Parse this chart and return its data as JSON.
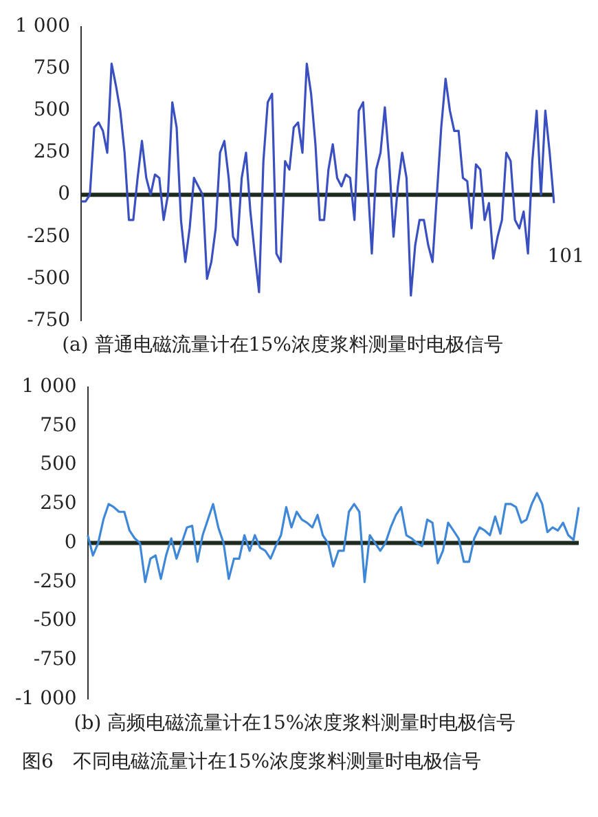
{
  "chart_data": [
    {
      "type": "line",
      "title": "(a) 普通电磁流量计在15%浓度浆料测量时电极信号",
      "categories": [
        null,
        null,
        null,
        null,
        null,
        null,
        null,
        null,
        null,
        null,
        null,
        null,
        null,
        null,
        null,
        null,
        null,
        null,
        null,
        null,
        null,
        null,
        null,
        null,
        null,
        null,
        null,
        null,
        null,
        null,
        null,
        null,
        null,
        null,
        null,
        null,
        null,
        null,
        null,
        null,
        null,
        null,
        null,
        null,
        null,
        null,
        null,
        null,
        null,
        null,
        null,
        null,
        null,
        null,
        null,
        null,
        null,
        null,
        null,
        null,
        null,
        null,
        null,
        null,
        null,
        null,
        null,
        null,
        null,
        null,
        null,
        null,
        null,
        null,
        null,
        null,
        null,
        null,
        null,
        null,
        null,
        null,
        null,
        null,
        null,
        null,
        null,
        null,
        null,
        null,
        null,
        null,
        null,
        null,
        null,
        null,
        null,
        null,
        null,
        null,
        null,
        null,
        null,
        null,
        null,
        null,
        null,
        null,
        null,
        null
      ],
      "series": [
        {
          "color": "#3a4fc0",
          "values": [
            -40,
            -40,
            0,
            400,
            430,
            380,
            250,
            780,
            650,
            500,
            250,
            -150,
            -150,
            100,
            320,
            100,
            0,
            120,
            100,
            -150,
            0,
            550,
            400,
            -150,
            -400,
            -200,
            100,
            50,
            0,
            -500,
            -400,
            -200,
            250,
            320,
            100,
            -250,
            -300,
            100,
            250,
            -100,
            -350,
            -580,
            200,
            550,
            600,
            -350,
            -400,
            200,
            150,
            400,
            430,
            250,
            780,
            600,
            300,
            -150,
            -150,
            150,
            300,
            100,
            50,
            120,
            100,
            -150,
            500,
            550,
            100,
            -350,
            150,
            250,
            520,
            200,
            -250,
            50,
            250,
            100,
            -600,
            -300,
            -150,
            -150,
            -300,
            -400,
            0,
            400,
            690,
            500,
            380,
            380,
            100,
            80,
            -200,
            180,
            150,
            -150,
            -50,
            -380,
            -250,
            -150,
            250,
            200,
            -150,
            -200,
            -100,
            -350,
            200,
            500,
            0,
            500,
            250,
            -50
          ]
        }
      ],
      "ylim": [
        -750,
        1000
      ],
      "yticks": [
        -750,
        -500,
        -250,
        0,
        250,
        500,
        750,
        1000
      ],
      "tick_labels": "y",
      "grid": false,
      "legend": false,
      "marker": "none",
      "line_style": "solid",
      "ref_lines": [
        {
          "axis": "y",
          "value": 0,
          "color": "#1e2a1e"
        }
      ],
      "annotations": [
        "101"
      ]
    },
    {
      "type": "line",
      "title": "(b) 高频电磁流量计在15%浓度浆料测量时电极信号",
      "categories": [
        null,
        null,
        null,
        null,
        null,
        null,
        null,
        null,
        null,
        null,
        null,
        null,
        null,
        null,
        null,
        null,
        null,
        null,
        null,
        null,
        null,
        null,
        null,
        null,
        null,
        null,
        null,
        null,
        null,
        null,
        null,
        null,
        null,
        null,
        null,
        null,
        null,
        null,
        null,
        null,
        null,
        null,
        null,
        null,
        null,
        null,
        null,
        null,
        null,
        null,
        null,
        null,
        null,
        null,
        null,
        null,
        null,
        null,
        null,
        null,
        null,
        null,
        null,
        null,
        null,
        null,
        null,
        null,
        null,
        null,
        null,
        null,
        null,
        null,
        null,
        null,
        null,
        null,
        null,
        null,
        null,
        null,
        null,
        null,
        null,
        null,
        null,
        null,
        null,
        null,
        null,
        null,
        null,
        null,
        null
      ],
      "series": [
        {
          "color": "#3f88d8",
          "values": [
            50,
            -80,
            0,
            150,
            250,
            230,
            200,
            200,
            80,
            30,
            0,
            -250,
            -100,
            -80,
            -230,
            -80,
            30,
            -100,
            0,
            100,
            110,
            -120,
            50,
            150,
            250,
            100,
            0,
            -230,
            -100,
            -100,
            50,
            -50,
            50,
            -30,
            -50,
            -100,
            -20,
            50,
            230,
            100,
            200,
            150,
            130,
            100,
            180,
            50,
            0,
            -150,
            -50,
            -50,
            200,
            250,
            200,
            -250,
            50,
            0,
            -50,
            0,
            100,
            180,
            230,
            50,
            30,
            0,
            -20,
            150,
            130,
            -130,
            -50,
            130,
            80,
            30,
            -120,
            -120,
            30,
            100,
            80,
            50,
            170,
            60,
            250,
            250,
            230,
            130,
            150,
            250,
            320,
            250,
            70,
            100,
            80,
            130,
            50,
            20,
            230
          ]
        }
      ],
      "ylim": [
        -1000,
        1000
      ],
      "yticks": [
        -1000,
        -750,
        -500,
        -250,
        0,
        250,
        500,
        750,
        1000
      ],
      "tick_labels": "y",
      "grid": false,
      "legend": false,
      "marker": "none",
      "line_style": "solid",
      "ref_lines": [
        {
          "axis": "y",
          "value": 0,
          "color": "#1e2a1e"
        }
      ],
      "annotations": [
        "图6　不同电磁流量计在15%浓度浆料测量时电极信号"
      ]
    }
  ]
}
